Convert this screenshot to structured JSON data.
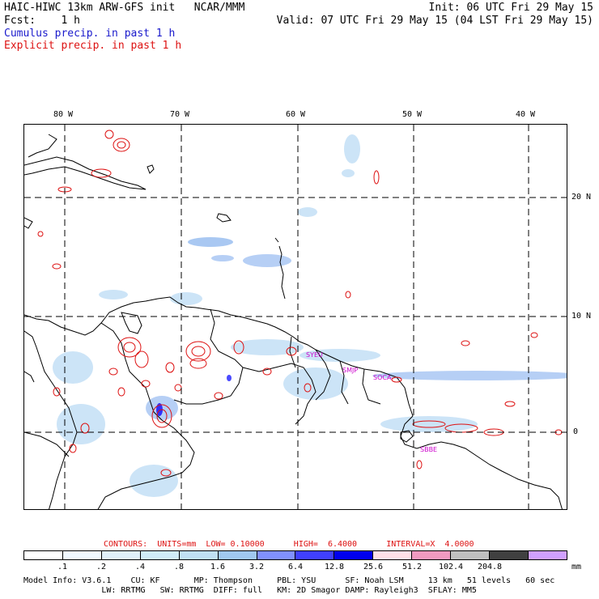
{
  "header": {
    "left_line1": "HAIC-HIWC 13km ARW-GFS init   NCAR/MMM",
    "right_line1": "Init: 06 UTC Fri 29 May 15",
    "left_line2": "Fcst:    1 h",
    "right_line2": "Valid: 07 UTC Fri 29 May 15 (04 LST Fri 29 May 15)",
    "legend_cumulus": "Cumulus precip. in past 1 h",
    "legend_explicit": "Explicit precip. in past 1 h",
    "colors": {
      "cumulus": "#1a1acc",
      "explicit": "#dd1111",
      "stations": "#cc00cc"
    }
  },
  "map": {
    "lon_labels": [
      "80 W",
      "70 W",
      "60 W",
      "50 W",
      "40 W"
    ],
    "lat_labels": [
      "20 N",
      "10 N",
      "0"
    ],
    "stations": [
      {
        "name": "SYEU"
      },
      {
        "name": "SMJP"
      },
      {
        "name": "SOCA"
      },
      {
        "name": "SBBE"
      }
    ]
  },
  "contours": {
    "label": "CONTOURS:  UNITS=mm  LOW= 0.10000      HIGH=  6.4000      INTERVAL=X  4.0000"
  },
  "colorbar": {
    "colors": [
      "#ffffff",
      "#f0f8ff",
      "#e0f0fa",
      "#d0ecf8",
      "#c0e0f4",
      "#a0c8f0",
      "#8090ff",
      "#4040ff",
      "#0000ee",
      "#ffe0e8",
      "#f09ac0",
      "#c0c0c0",
      "#404040",
      "#d0a0ff"
    ],
    "labels": [
      ".1",
      ".2",
      ".4",
      ".8",
      "1.6",
      "3.2",
      "6.4",
      "12.8",
      "25.6",
      "51.2",
      "102.4",
      "204.8"
    ],
    "unit": "mm"
  },
  "footer": {
    "line1": "Model Info: V3.6.1    CU: KF       MP: Thompson     PBL: YSU      SF: Noah LSM     13 km   51 levels   60 sec",
    "line2": "                LW: RRTMG   SW: RRTMG  DIFF: full   KM: 2D Smagor DAMP: Rayleigh3  SFLAY: MM5"
  }
}
